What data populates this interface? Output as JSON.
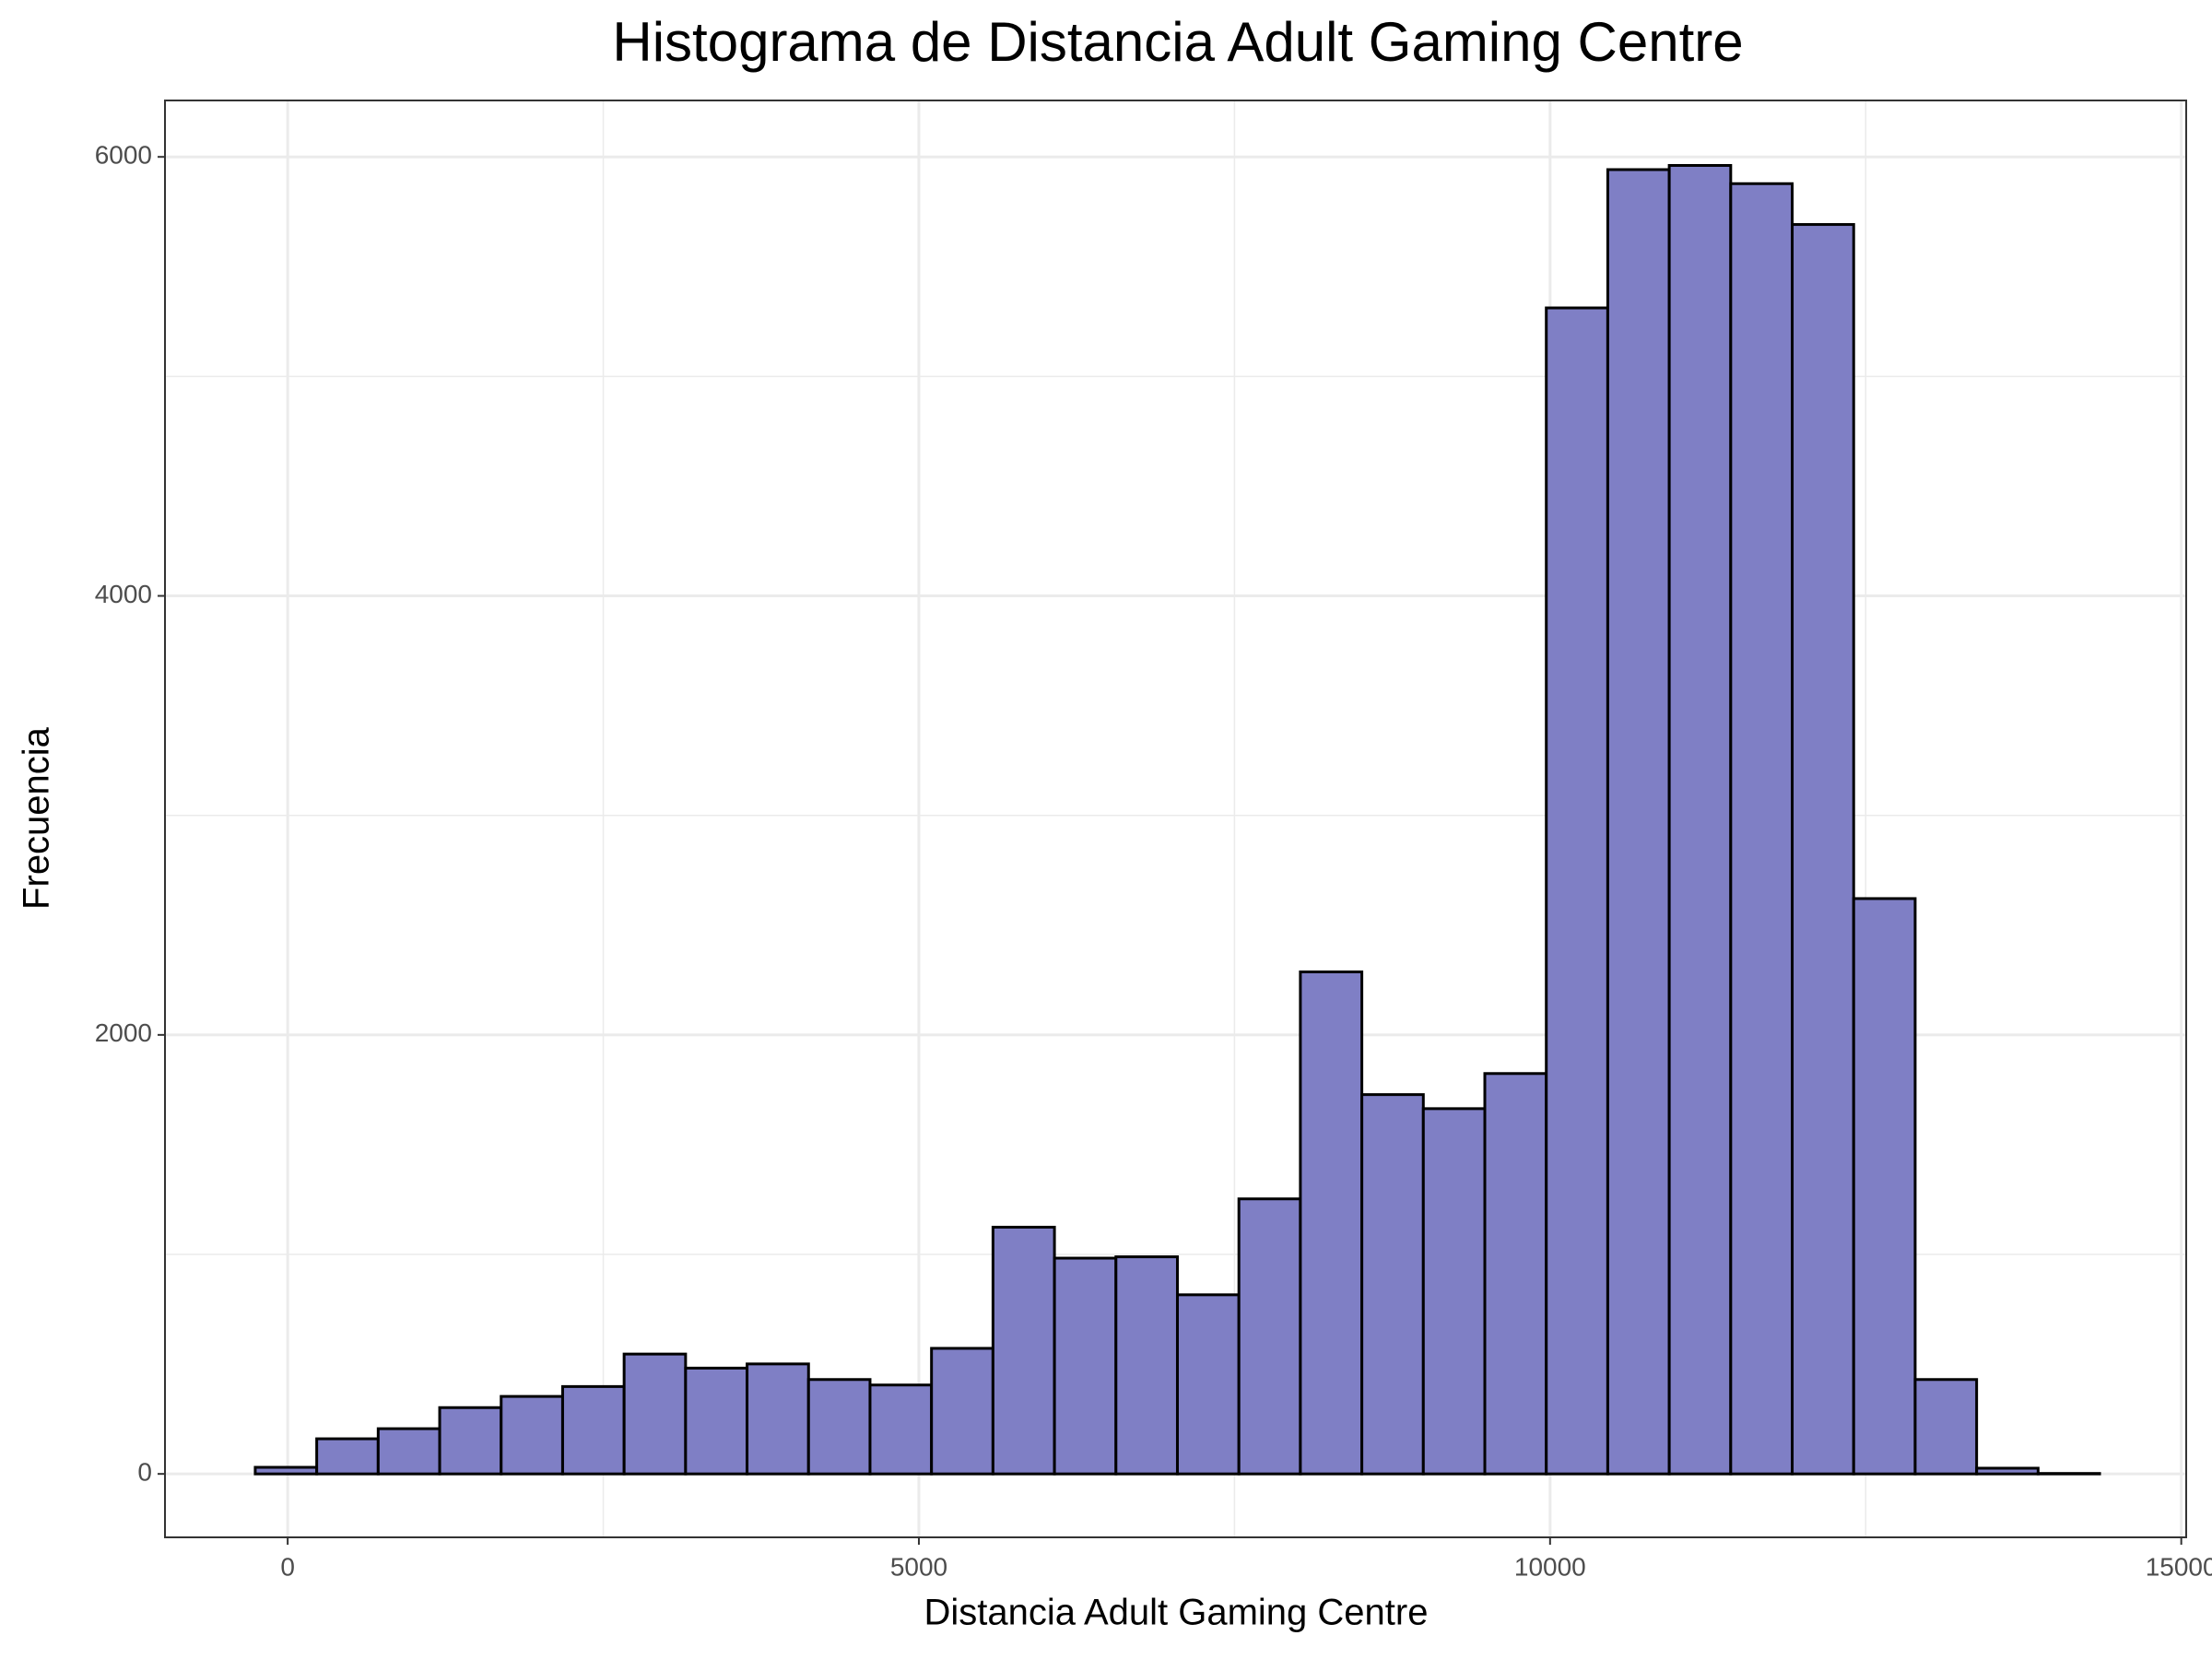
{
  "chart_data": {
    "type": "histogram",
    "title": "Histograma de Distancia Adult Gaming Centre",
    "x_label": "Distancia Adult Gaming Centre",
    "y_label": "Frecuencia",
    "bins": [
      -257,
      230,
      717,
      1204,
      1691,
      2178,
      2665,
      3152,
      3639,
      4126,
      4613,
      5100,
      5587,
      6074,
      6561,
      7048,
      7535,
      8022,
      8509,
      8996,
      9483,
      9970,
      10457,
      10944,
      11431,
      11918,
      12405,
      12892,
      13379,
      13866,
      14353
    ],
    "values": [
      30,
      160,
      206,
      302,
      353,
      398,
      546,
      482,
      501,
      430,
      405,
      572,
      1124,
      983,
      989,
      816,
      1253,
      2287,
      1728,
      1664,
      1824,
      5312,
      5942,
      5961,
      5878,
      5692,
      2621,
      430,
      26,
      2
    ],
    "color": "#7f7fc5",
    "edge_color": "#000000",
    "xlim": [
      -972,
      15039
    ],
    "ylim": [
      -289,
      6257
    ],
    "xticks": [
      0,
      5000,
      10000,
      15000
    ],
    "yticks": [
      0,
      2000,
      4000,
      6000
    ],
    "grid": true
  }
}
